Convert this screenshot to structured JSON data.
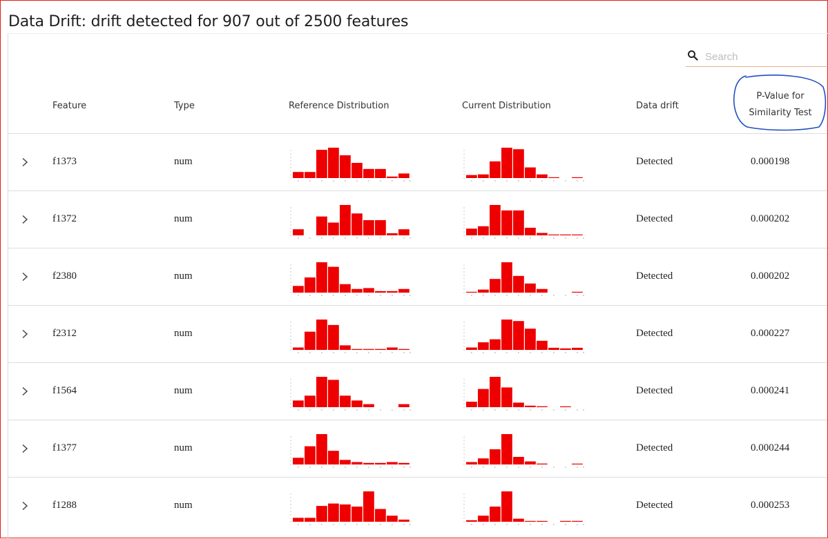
{
  "title": "Data Drift: drift detected for 907 out of 2500 features",
  "search": {
    "placeholder": "Search",
    "value": ""
  },
  "columns": {
    "feature": "Feature",
    "type": "Type",
    "reference": "Reference Distribution",
    "current": "Current Distribution",
    "drift": "Data drift",
    "pvalue_line1": "P-Value for",
    "pvalue_line2": "Similarity Test"
  },
  "annotation_color": "#1f4fbf",
  "bar_color": "#ee0000",
  "rows": [
    {
      "feature": "f1373",
      "type": "num",
      "drift": "Detected",
      "pvalue": "0.000198",
      "ref": [
        0.2,
        0.2,
        0.93,
        1.0,
        0.75,
        0.5,
        0.3,
        0.3,
        0.05,
        0.15
      ],
      "cur": [
        0.1,
        0.12,
        0.55,
        1.0,
        0.95,
        0.35,
        0.12,
        0.02,
        0,
        0.02
      ]
    },
    {
      "feature": "f1372",
      "type": "num",
      "drift": "Detected",
      "pvalue": "0.000202",
      "ref": [
        0.2,
        0,
        0.62,
        0.42,
        1.0,
        0.72,
        0.5,
        0.5,
        0.07,
        0.2
      ],
      "cur": [
        0.22,
        0.3,
        1.0,
        0.82,
        0.82,
        0.25,
        0.08,
        0.02,
        0.02,
        0.02
      ]
    },
    {
      "feature": "f2380",
      "type": "num",
      "drift": "Detected",
      "pvalue": "0.000202",
      "ref": [
        0.22,
        0.5,
        1.0,
        0.85,
        0.28,
        0.12,
        0.15,
        0.05,
        0.05,
        0.12
      ],
      "cur": [
        0.02,
        0.1,
        0.45,
        1.0,
        0.55,
        0.3,
        0.12,
        0,
        0,
        0.02
      ]
    },
    {
      "feature": "f2312",
      "type": "num",
      "drift": "Detected",
      "pvalue": "0.000227",
      "ref": [
        0.08,
        0.6,
        1.0,
        0.82,
        0.15,
        0.03,
        0.03,
        0.03,
        0.08,
        0.03
      ],
      "cur": [
        0.08,
        0.25,
        0.35,
        1.0,
        0.95,
        0.7,
        0.3,
        0.07,
        0.05,
        0.07
      ]
    },
    {
      "feature": "f1564",
      "type": "num",
      "drift": "Detected",
      "pvalue": "0.000241",
      "ref": [
        0.22,
        0.38,
        1.0,
        0.9,
        0.38,
        0.22,
        0.1,
        0,
        0,
        0.1
      ],
      "cur": [
        0.18,
        0.6,
        1.0,
        0.65,
        0.15,
        0.05,
        0.03,
        0,
        0.02,
        0
      ]
    },
    {
      "feature": "f1377",
      "type": "num",
      "drift": "Detected",
      "pvalue": "0.000244",
      "ref": [
        0.22,
        0.6,
        1.0,
        0.45,
        0.15,
        0.08,
        0.05,
        0.05,
        0.08,
        0.05
      ],
      "cur": [
        0.08,
        0.2,
        0.5,
        1.0,
        0.25,
        0.1,
        0.03,
        0,
        0,
        0.02
      ]
    },
    {
      "feature": "f1288",
      "type": "num",
      "drift": "Detected",
      "pvalue": "0.000253",
      "ref": [
        0.13,
        0.13,
        0.52,
        0.6,
        0.57,
        0.5,
        1.0,
        0.42,
        0.2,
        0.07
      ],
      "cur": [
        0.05,
        0.2,
        0.5,
        1.0,
        0.1,
        0.02,
        0.02,
        0,
        0.02,
        0.02
      ]
    }
  ]
}
